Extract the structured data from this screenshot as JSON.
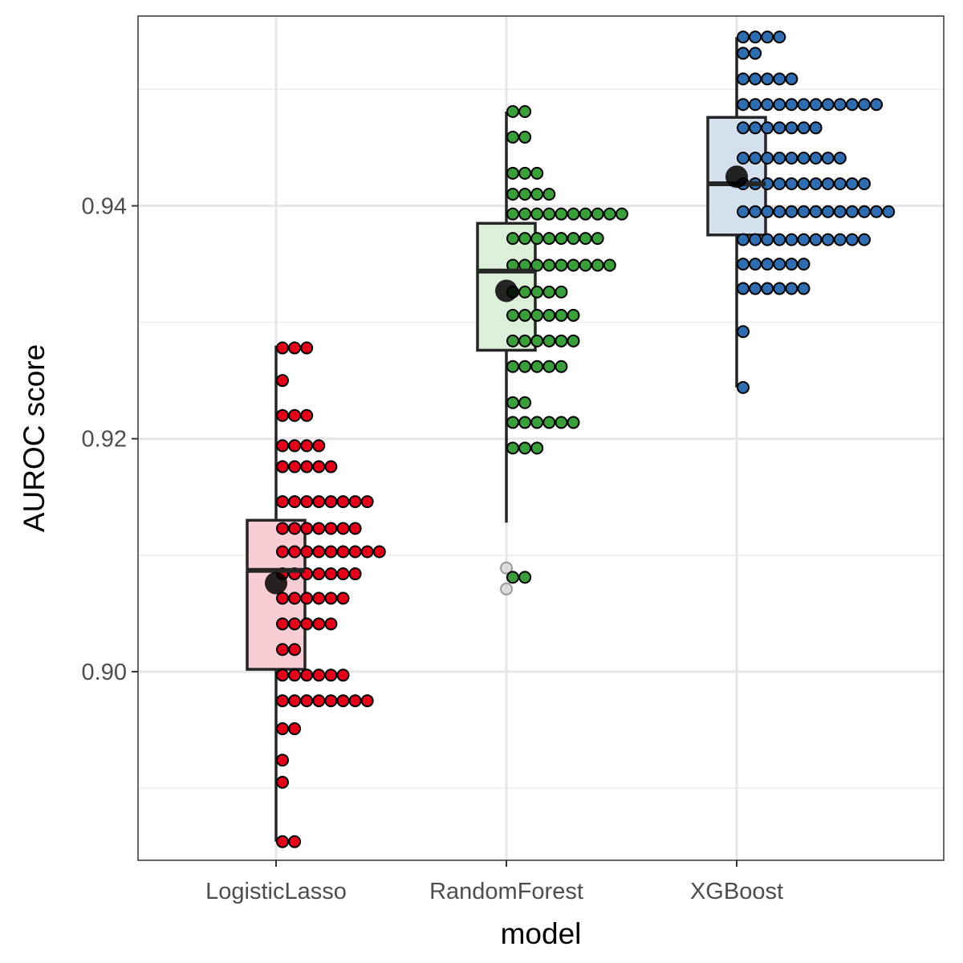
{
  "chart_data": {
    "type": "boxplot-dotplot",
    "xlabel": "model",
    "ylabel": "AUROC score",
    "ylim": [
      0.8838,
      0.9563
    ],
    "yticks": [
      {
        "value": 0.9,
        "label": "0.90"
      },
      {
        "value": 0.92,
        "label": "0.92"
      },
      {
        "value": 0.94,
        "label": "0.94"
      }
    ],
    "yminor": [
      0.89,
      0.91,
      0.93,
      0.95
    ],
    "grid": true,
    "categories": [
      "LogisticLasso",
      "RandomForest",
      "XGBoost"
    ],
    "series": [
      {
        "category": "LogisticLasso",
        "color": "#e3001b",
        "box_fill": "#f8cdd4",
        "box": {
          "q1": 0.9002,
          "median": 0.9087,
          "q3": 0.913,
          "whisker_low": 0.8854,
          "whisker_high": 0.928
        },
        "mean": 0.9076,
        "outliers": [],
        "dots": [
          {
            "value": 0.9278,
            "count": 3
          },
          {
            "value": 0.925,
            "count": 1
          },
          {
            "value": 0.922,
            "count": 3
          },
          {
            "value": 0.9194,
            "count": 4
          },
          {
            "value": 0.9176,
            "count": 5
          },
          {
            "value": 0.9146,
            "count": 8
          },
          {
            "value": 0.9123,
            "count": 7
          },
          {
            "value": 0.9103,
            "count": 9
          },
          {
            "value": 0.9084,
            "count": 7
          },
          {
            "value": 0.9063,
            "count": 6
          },
          {
            "value": 0.9041,
            "count": 5
          },
          {
            "value": 0.9019,
            "count": 2
          },
          {
            "value": 0.8997,
            "count": 6
          },
          {
            "value": 0.8975,
            "count": 8
          },
          {
            "value": 0.8951,
            "count": 2
          },
          {
            "value": 0.8924,
            "count": 1
          },
          {
            "value": 0.8905,
            "count": 1
          },
          {
            "value": 0.8854,
            "count": 2
          }
        ]
      },
      {
        "category": "RandomForest",
        "color": "#3a9e3a",
        "box_fill": "#dcefd9",
        "box": {
          "q1": 0.9276,
          "median": 0.9344,
          "q3": 0.9385,
          "whisker_low": 0.9128,
          "whisker_high": 0.9481
        },
        "mean": 0.9327,
        "outliers": [
          0.9089,
          0.9071
        ],
        "dots": [
          {
            "value": 0.9481,
            "count": 2
          },
          {
            "value": 0.9459,
            "count": 2
          },
          {
            "value": 0.9428,
            "count": 3
          },
          {
            "value": 0.941,
            "count": 4
          },
          {
            "value": 0.9393,
            "count": 10
          },
          {
            "value": 0.9372,
            "count": 8
          },
          {
            "value": 0.9349,
            "count": 9
          },
          {
            "value": 0.9326,
            "count": 5
          },
          {
            "value": 0.9306,
            "count": 6
          },
          {
            "value": 0.9284,
            "count": 6
          },
          {
            "value": 0.9262,
            "count": 5
          },
          {
            "value": 0.9231,
            "count": 2
          },
          {
            "value": 0.9214,
            "count": 6
          },
          {
            "value": 0.9192,
            "count": 3
          },
          {
            "value": 0.9128,
            "count": 0
          },
          {
            "value": 0.9081,
            "count": 2
          }
        ]
      },
      {
        "category": "XGBoost",
        "color": "#2f6db0",
        "box_fill": "#d4e0ee",
        "box": {
          "q1": 0.9375,
          "median": 0.9419,
          "q3": 0.9476,
          "whisker_low": 0.9244,
          "whisker_high": 0.9545
        },
        "mean": 0.9425,
        "outliers": [],
        "dots": [
          {
            "value": 0.9545,
            "count": 4
          },
          {
            "value": 0.9531,
            "count": 2
          },
          {
            "value": 0.9509,
            "count": 5
          },
          {
            "value": 0.9487,
            "count": 12
          },
          {
            "value": 0.9467,
            "count": 7
          },
          {
            "value": 0.9441,
            "count": 9
          },
          {
            "value": 0.9419,
            "count": 11
          },
          {
            "value": 0.9395,
            "count": 13
          },
          {
            "value": 0.9371,
            "count": 11
          },
          {
            "value": 0.935,
            "count": 6
          },
          {
            "value": 0.9329,
            "count": 6
          },
          {
            "value": 0.9292,
            "count": 1
          },
          {
            "value": 0.9244,
            "count": 1
          }
        ]
      }
    ]
  }
}
